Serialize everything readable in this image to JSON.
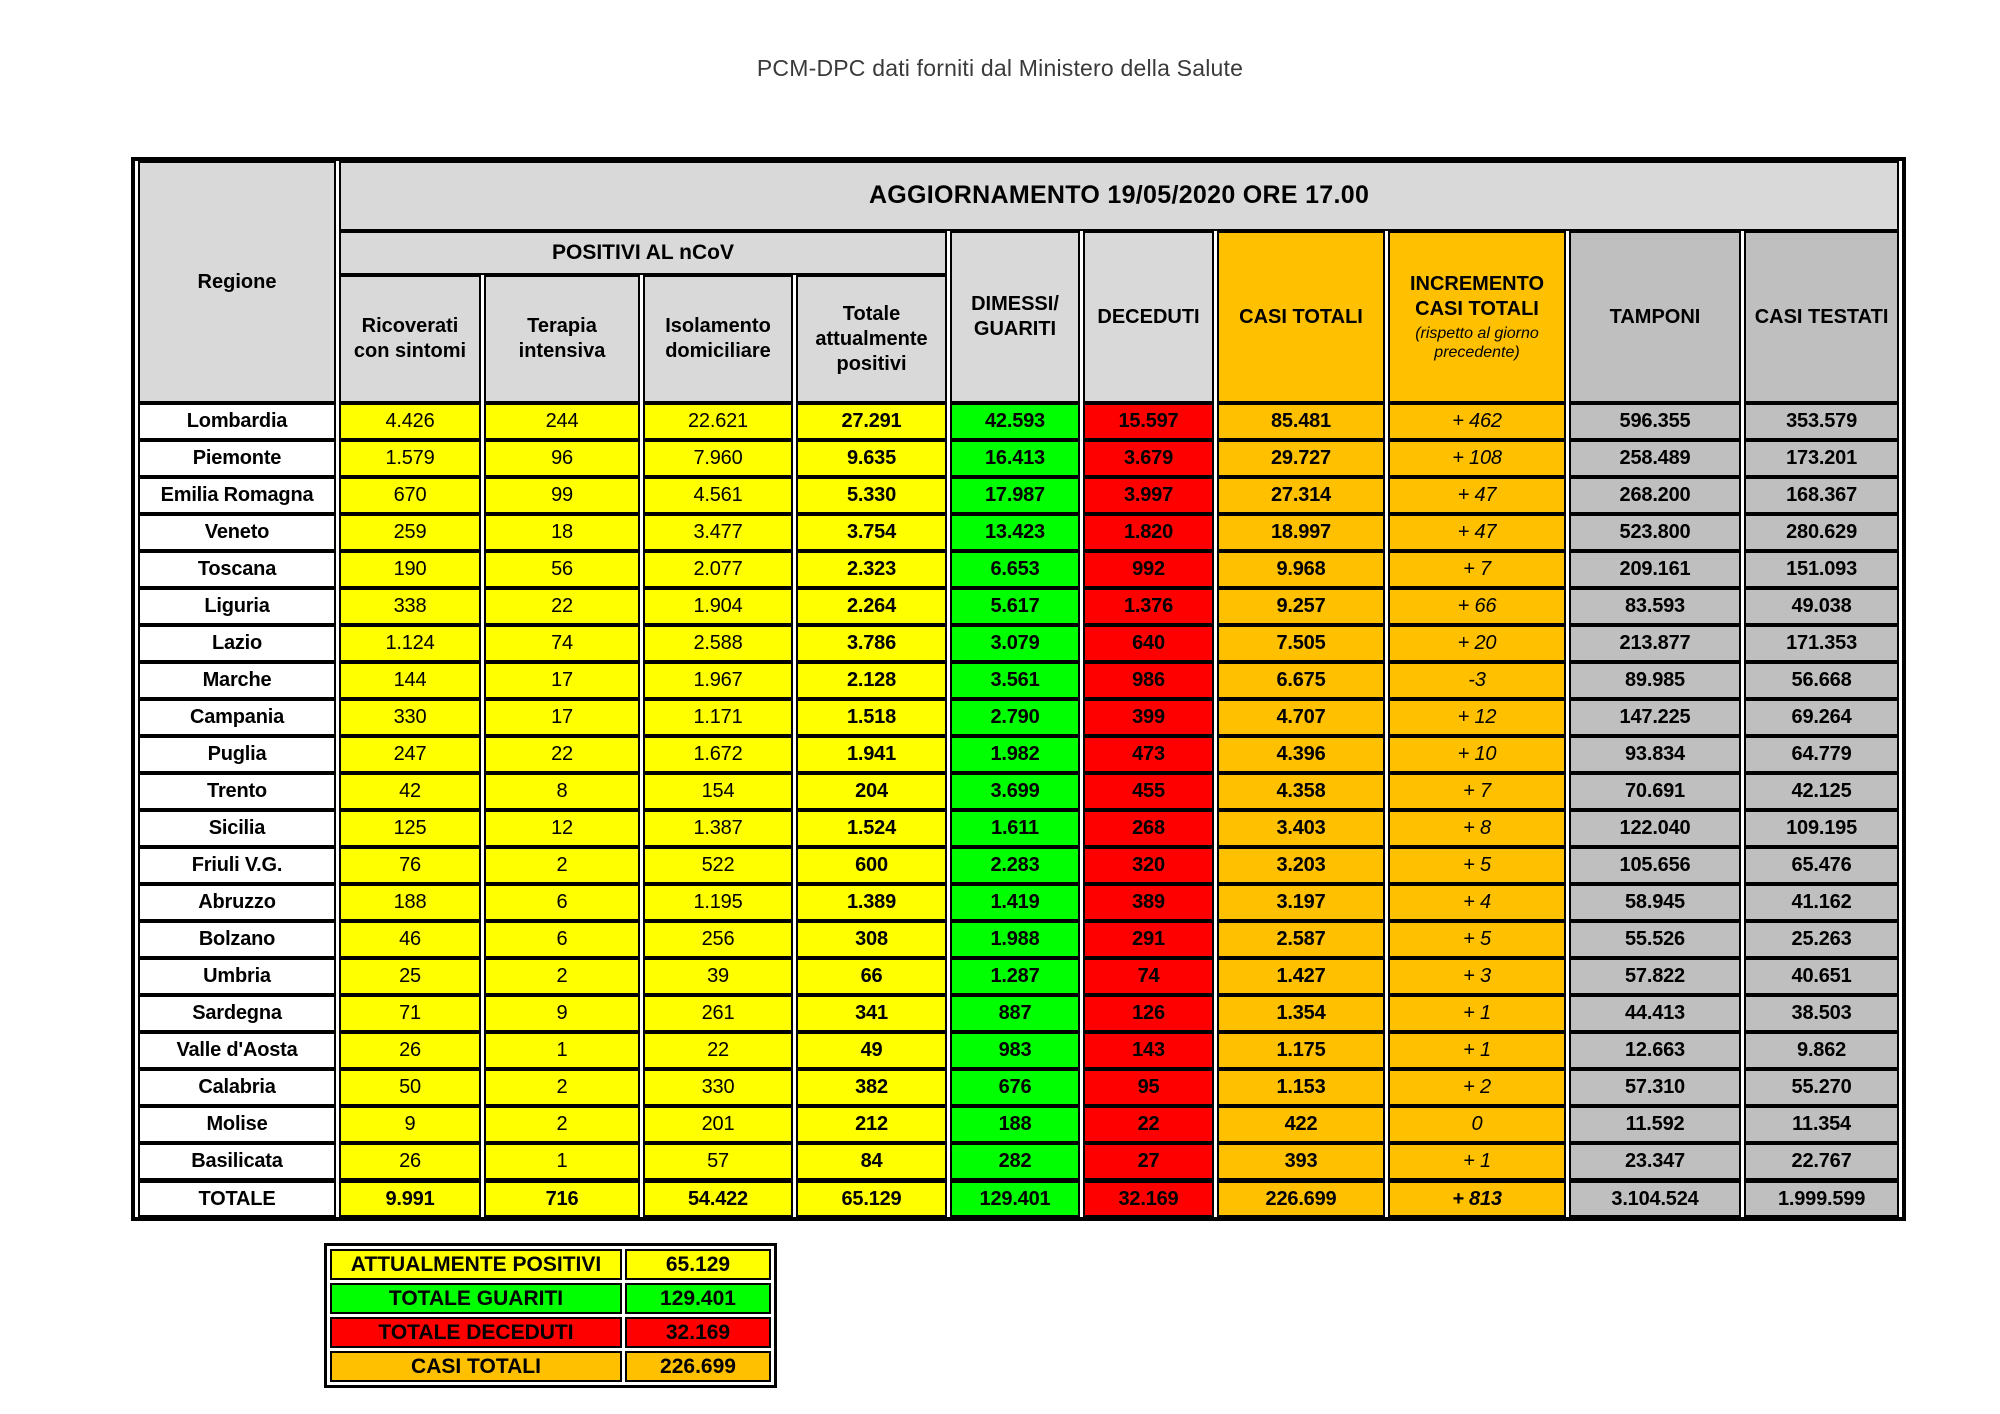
{
  "page": {
    "title": "PCM-DPC dati forniti dal Ministero della Salute"
  },
  "colors": {
    "yellow": "#FFFF00",
    "green": "#00FF00",
    "red": "#FF0000",
    "orange": "#FFC000",
    "header_gray": "#D9D9D9",
    "column_gray": "#BFBFBF"
  },
  "chart_data": {
    "type": "table",
    "update_title": "AGGIORNAMENTO 19/05/2020 ORE 17.00",
    "positivi_group_label": "POSITIVI AL nCoV",
    "columns": [
      "Regione",
      "Ricoverati con sintomi",
      "Terapia intensiva",
      "Isolamento domiciliare",
      "Totale attualmente positivi",
      "DIMESSI/ GUARITI",
      "DECEDUTI",
      "CASI TOTALI",
      "INCREMENTO CASI TOTALI",
      "TAMPONI",
      "CASI TESTATI"
    ],
    "incremento_note": "(rispetto al giorno precedente)",
    "rows": [
      {
        "region": "Lombardia",
        "ricoverati": "4.426",
        "terapia": "244",
        "isolamento": "22.621",
        "totale_positivi": "27.291",
        "dimessi": "42.593",
        "deceduti": "15.597",
        "casi_totali": "85.481",
        "incremento": "+ 462",
        "tamponi": "596.355",
        "casi_testati": "353.579"
      },
      {
        "region": "Piemonte",
        "ricoverati": "1.579",
        "terapia": "96",
        "isolamento": "7.960",
        "totale_positivi": "9.635",
        "dimessi": "16.413",
        "deceduti": "3.679",
        "casi_totali": "29.727",
        "incremento": "+ 108",
        "tamponi": "258.489",
        "casi_testati": "173.201"
      },
      {
        "region": "Emilia Romagna",
        "ricoverati": "670",
        "terapia": "99",
        "isolamento": "4.561",
        "totale_positivi": "5.330",
        "dimessi": "17.987",
        "deceduti": "3.997",
        "casi_totali": "27.314",
        "incremento": "+ 47",
        "tamponi": "268.200",
        "casi_testati": "168.367"
      },
      {
        "region": "Veneto",
        "ricoverati": "259",
        "terapia": "18",
        "isolamento": "3.477",
        "totale_positivi": "3.754",
        "dimessi": "13.423",
        "deceduti": "1.820",
        "casi_totali": "18.997",
        "incremento": "+ 47",
        "tamponi": "523.800",
        "casi_testati": "280.629"
      },
      {
        "region": "Toscana",
        "ricoverati": "190",
        "terapia": "56",
        "isolamento": "2.077",
        "totale_positivi": "2.323",
        "dimessi": "6.653",
        "deceduti": "992",
        "casi_totali": "9.968",
        "incremento": "+ 7",
        "tamponi": "209.161",
        "casi_testati": "151.093"
      },
      {
        "region": "Liguria",
        "ricoverati": "338",
        "terapia": "22",
        "isolamento": "1.904",
        "totale_positivi": "2.264",
        "dimessi": "5.617",
        "deceduti": "1.376",
        "casi_totali": "9.257",
        "incremento": "+ 66",
        "tamponi": "83.593",
        "casi_testati": "49.038"
      },
      {
        "region": "Lazio",
        "ricoverati": "1.124",
        "terapia": "74",
        "isolamento": "2.588",
        "totale_positivi": "3.786",
        "dimessi": "3.079",
        "deceduti": "640",
        "casi_totali": "7.505",
        "incremento": "+ 20",
        "tamponi": "213.877",
        "casi_testati": "171.353"
      },
      {
        "region": "Marche",
        "ricoverati": "144",
        "terapia": "17",
        "isolamento": "1.967",
        "totale_positivi": "2.128",
        "dimessi": "3.561",
        "deceduti": "986",
        "casi_totali": "6.675",
        "incremento": "-3",
        "tamponi": "89.985",
        "casi_testati": "56.668"
      },
      {
        "region": "Campania",
        "ricoverati": "330",
        "terapia": "17",
        "isolamento": "1.171",
        "totale_positivi": "1.518",
        "dimessi": "2.790",
        "deceduti": "399",
        "casi_totali": "4.707",
        "incremento": "+ 12",
        "tamponi": "147.225",
        "casi_testati": "69.264"
      },
      {
        "region": "Puglia",
        "ricoverati": "247",
        "terapia": "22",
        "isolamento": "1.672",
        "totale_positivi": "1.941",
        "dimessi": "1.982",
        "deceduti": "473",
        "casi_totali": "4.396",
        "incremento": "+ 10",
        "tamponi": "93.834",
        "casi_testati": "64.779"
      },
      {
        "region": "Trento",
        "ricoverati": "42",
        "terapia": "8",
        "isolamento": "154",
        "totale_positivi": "204",
        "dimessi": "3.699",
        "deceduti": "455",
        "casi_totali": "4.358",
        "incremento": "+ 7",
        "tamponi": "70.691",
        "casi_testati": "42.125"
      },
      {
        "region": "Sicilia",
        "ricoverati": "125",
        "terapia": "12",
        "isolamento": "1.387",
        "totale_positivi": "1.524",
        "dimessi": "1.611",
        "deceduti": "268",
        "casi_totali": "3.403",
        "incremento": "+ 8",
        "tamponi": "122.040",
        "casi_testati": "109.195"
      },
      {
        "region": "Friuli V.G.",
        "ricoverati": "76",
        "terapia": "2",
        "isolamento": "522",
        "totale_positivi": "600",
        "dimessi": "2.283",
        "deceduti": "320",
        "casi_totali": "3.203",
        "incremento": "+ 5",
        "tamponi": "105.656",
        "casi_testati": "65.476"
      },
      {
        "region": "Abruzzo",
        "ricoverati": "188",
        "terapia": "6",
        "isolamento": "1.195",
        "totale_positivi": "1.389",
        "dimessi": "1.419",
        "deceduti": "389",
        "casi_totali": "3.197",
        "incremento": "+ 4",
        "tamponi": "58.945",
        "casi_testati": "41.162"
      },
      {
        "region": "Bolzano",
        "ricoverati": "46",
        "terapia": "6",
        "isolamento": "256",
        "totale_positivi": "308",
        "dimessi": "1.988",
        "deceduti": "291",
        "casi_totali": "2.587",
        "incremento": "+ 5",
        "tamponi": "55.526",
        "casi_testati": "25.263"
      },
      {
        "region": "Umbria",
        "ricoverati": "25",
        "terapia": "2",
        "isolamento": "39",
        "totale_positivi": "66",
        "dimessi": "1.287",
        "deceduti": "74",
        "casi_totali": "1.427",
        "incremento": "+ 3",
        "tamponi": "57.822",
        "casi_testati": "40.651"
      },
      {
        "region": "Sardegna",
        "ricoverati": "71",
        "terapia": "9",
        "isolamento": "261",
        "totale_positivi": "341",
        "dimessi": "887",
        "deceduti": "126",
        "casi_totali": "1.354",
        "incremento": "+ 1",
        "tamponi": "44.413",
        "casi_testati": "38.503"
      },
      {
        "region": "Valle d'Aosta",
        "ricoverati": "26",
        "terapia": "1",
        "isolamento": "22",
        "totale_positivi": "49",
        "dimessi": "983",
        "deceduti": "143",
        "casi_totali": "1.175",
        "incremento": "+ 1",
        "tamponi": "12.663",
        "casi_testati": "9.862"
      },
      {
        "region": "Calabria",
        "ricoverati": "50",
        "terapia": "2",
        "isolamento": "330",
        "totale_positivi": "382",
        "dimessi": "676",
        "deceduti": "95",
        "casi_totali": "1.153",
        "incremento": "+ 2",
        "tamponi": "57.310",
        "casi_testati": "55.270"
      },
      {
        "region": "Molise",
        "ricoverati": "9",
        "terapia": "2",
        "isolamento": "201",
        "totale_positivi": "212",
        "dimessi": "188",
        "deceduti": "22",
        "casi_totali": "422",
        "incremento": "0",
        "tamponi": "11.592",
        "casi_testati": "11.354"
      },
      {
        "region": "Basilicata",
        "ricoverati": "26",
        "terapia": "1",
        "isolamento": "57",
        "totale_positivi": "84",
        "dimessi": "282",
        "deceduti": "27",
        "casi_totali": "393",
        "incremento": "+ 1",
        "tamponi": "23.347",
        "casi_testati": "22.767"
      }
    ],
    "total_row": {
      "region": "TOTALE",
      "ricoverati": "9.991",
      "terapia": "716",
      "isolamento": "54.422",
      "totale_positivi": "65.129",
      "dimessi": "129.401",
      "deceduti": "32.169",
      "casi_totali": "226.699",
      "incremento": "+ 813",
      "tamponi": "3.104.524",
      "casi_testati": "1.999.599"
    }
  },
  "summary": {
    "rows": [
      {
        "label": "ATTUALMENTE POSITIVI",
        "value": "65.129",
        "color": "#FFFF00"
      },
      {
        "label": "TOTALE GUARITI",
        "value": "129.401",
        "color": "#00FF00"
      },
      {
        "label": "TOTALE DECEDUTI",
        "value": "32.169",
        "color": "#FF0000"
      },
      {
        "label": "CASI TOTALI",
        "value": "226.699",
        "color": "#FFC000"
      }
    ]
  }
}
